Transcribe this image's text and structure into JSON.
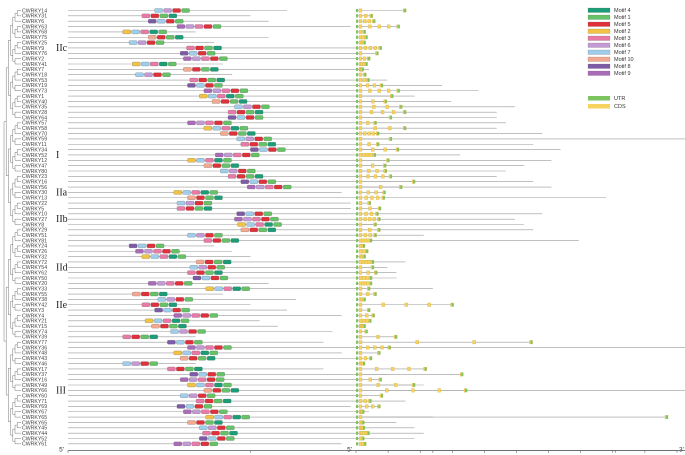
{
  "genes": [
    "CWRKY14",
    "CWRKY31",
    "CWRKY6",
    "CWRKY63",
    "CWRKY68",
    "CWRKY75",
    "CWRKY25",
    "CWRKY9",
    "CWRKY76",
    "CWRKY2",
    "CWRKY41",
    "CWRKY7",
    "CWRKY18",
    "CWRKY53",
    "CWRKY19",
    "CWRKY73",
    "CWRKY1",
    "CWRKY40",
    "CWRKY35",
    "CWRKY28",
    "CWRKY64",
    "CWRKY57",
    "CWRKY58",
    "CWRKY70",
    "CWRKY59",
    "CWRKY11",
    "CWRKY34",
    "CWRKY52",
    "CWRKY12",
    "CWRKY47",
    "CWRKY80",
    "CWRKY23",
    "CWRKY16",
    "CWRKY56",
    "CWRKY30",
    "CWRKY13",
    "CWRKY22",
    "CWRKY5",
    "CWRKY10",
    "CWRKY27",
    "CWRKY8",
    "CWRKY29",
    "CWRKY51",
    "CWRKY81",
    "CWRKY24",
    "CWRKY26",
    "CWRKY32",
    "CWRKY72",
    "CWRKY54",
    "CWRKY62",
    "CWRKY50",
    "CWRKY20",
    "CWRKY33",
    "CWRKY55",
    "CWRKY38",
    "CWRKY42",
    "CWRKY3",
    "CWRKY4",
    "CWRKY21",
    "CWRKY15",
    "CWRKY74",
    "CWRKY39",
    "CWRKY77",
    "CWRKY36",
    "CWRKY48",
    "CWRKY43",
    "CWRKY46",
    "CWRKY17",
    "CWRKY37",
    "CWRKY16",
    "CWRKY49",
    "CWRKY66",
    "CWRKY60",
    "CWRKY71",
    "CWRKY69",
    "CWRKY67",
    "CWRKY65",
    "CWRKY65",
    "CWRKY45",
    "CWRKY44",
    "CWRKY52",
    "CWRKY61"
  ],
  "groups": [
    {
      "label": "IIc",
      "row": 7
    },
    {
      "label": "I",
      "row": 27
    },
    {
      "label": "IIa",
      "row": 34
    },
    {
      "label": "IIb",
      "row": 39
    },
    {
      "label": "IId",
      "row": 48
    },
    {
      "label": "IIe",
      "row": 55
    },
    {
      "label": "III",
      "row": 71
    }
  ],
  "protein_axis": {
    "ticks": [
      "0",
      "200",
      "400",
      "600",
      "800",
      "1000",
      "1200",
      "1400"
    ],
    "end_left": "5'",
    "end_right": "3'"
  },
  "gene_axis": {
    "ticks": [
      "0",
      "5000",
      "10000",
      "15000",
      "20000",
      "25000",
      "30000",
      "35000",
      "40000",
      "45000",
      "50000"
    ],
    "end_left": "5'",
    "end_right": "3'"
  },
  "protein_lengths": [
    240,
    200,
    220,
    310,
    140,
    220,
    160,
    340,
    320,
    330,
    170,
    330,
    180,
    350,
    410,
    450,
    380,
    420,
    490,
    470,
    470,
    480,
    470,
    520,
    710,
    510,
    540,
    430,
    530,
    500,
    480,
    470,
    510,
    530,
    300,
    590,
    310,
    310,
    520,
    490,
    500,
    510,
    390,
    560,
    160,
    180,
    200,
    370,
    350,
    360,
    360,
    220,
    400,
    170,
    250,
    200,
    240,
    300,
    210,
    230,
    290,
    140,
    280,
    1340,
    300,
    320,
    140,
    280,
    350,
    320,
    390,
    1200,
    320,
    370,
    310,
    330,
    400,
    360,
    380,
    390,
    380,
    300
  ],
  "gene_lengths": [
    7800,
    2600,
    3000,
    6800,
    1500,
    1800,
    1500,
    4000,
    3500,
    2200,
    1800,
    1200,
    1600,
    2100,
    4200,
    6800,
    5800,
    4800,
    7200,
    7800,
    5600,
    3200,
    7800,
    3600,
    5600,
    3600,
    6700,
    3100,
    5200,
    4700,
    4800,
    5600,
    9200,
    7200,
    4600,
    4500,
    2300,
    3900,
    3500,
    3800,
    3200,
    3800,
    3200,
    2500,
    1400,
    1900,
    1500,
    2800,
    2800,
    3300,
    2500,
    2500,
    2200,
    3200,
    1500,
    15200,
    2200,
    2900,
    2400,
    1500,
    1800,
    6400,
    27500,
    5400,
    3800,
    2500,
    1400,
    11000,
    16700,
    4000,
    9200,
    17300,
    4200,
    2400,
    3800,
    1300,
    48600,
    1300,
    1400,
    2100,
    1300,
    1600
  ],
  "motif_legend": [
    {
      "name": "Motif 4",
      "color": "#1b9e77"
    },
    {
      "name": "Motif 1",
      "color": "#66c266"
    },
    {
      "name": "Motif 5",
      "color": "#e0303a"
    },
    {
      "name": "Motif 2",
      "color": "#f2c244"
    },
    {
      "name": "Motif 3",
      "color": "#e87aa8"
    },
    {
      "name": "Motif 6",
      "color": "#c49ad6"
    },
    {
      "name": "Motif 7",
      "color": "#9fcdea"
    },
    {
      "name": "Motif 10",
      "color": "#f3a98f"
    },
    {
      "name": "Motif 8",
      "color": "#7d5ba6"
    },
    {
      "name": "Motif 9",
      "color": "#a96bb8"
    }
  ],
  "structure_legend": [
    {
      "name": "UTR",
      "color": "#7cc45f"
    },
    {
      "name": "CDS",
      "color": "#f7d25c"
    }
  ]
}
